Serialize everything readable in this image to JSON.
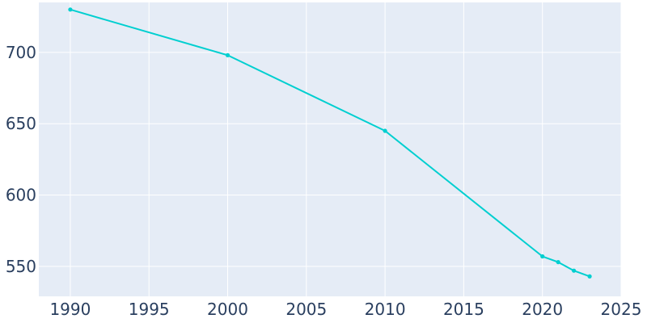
{
  "chart_data": {
    "type": "line",
    "title": "",
    "xlabel": "",
    "ylabel": "",
    "xlim": [
      1988,
      2025
    ],
    "ylim": [
      529,
      735
    ],
    "grid": true,
    "x_ticks": [
      1990,
      1995,
      2000,
      2005,
      2010,
      2015,
      2020,
      2025
    ],
    "y_ticks": [
      550,
      600,
      650,
      700
    ],
    "series": [
      {
        "x": [
          1990,
          2000,
          2010,
          2020,
          2021,
          2022,
          2023
        ],
        "y": [
          730,
          698,
          645,
          557,
          553,
          547,
          543
        ]
      }
    ],
    "colors": {
      "plot_background": "#e5ecf6",
      "grid": "#ffffff",
      "line": "#00cfd0",
      "text": "#2a3f5f"
    }
  }
}
